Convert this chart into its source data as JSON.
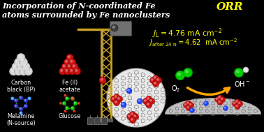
{
  "bg_color": "#000000",
  "title_line1": "Incorporation of N-coordinated Fe",
  "title_line2": "atoms surrounded by Fe nanoclusters",
  "orr_label": "ORR",
  "jl_text": "$\\mathit{J}_{\\rm L} = 4.76\\ \\rm{mA\\ cm}^{-2}$",
  "j24_text": "$\\mathit{J}_{\\rm after\\ 24\\ h} = 4.62\\ \\ \\rm{mA\\ cm}^{-2}$",
  "label_carbon": "Carbon\nblack (BP)",
  "label_fe": "Fe (II)\nacetate",
  "label_melamine": "Melamine\n(N-source)",
  "label_glucose": "Glucose",
  "o2_label": "O$_2$",
  "oh_label": "OH$^-$",
  "title_color": "#ffffff",
  "orr_color": "#ffff00",
  "jl_color": "#ffff00",
  "label_color": "#ffffff",
  "carbon_sphere_color": "#d8d8d8",
  "fe_sphere_color": "#cc1111",
  "melamine_color": "#3333cc",
  "crane_color": "#c8a020",
  "arrow_color": "#ffa500",
  "o2_color": "#00cc00",
  "oh_green": "#00cc00",
  "oh_white": "#e0e0e0",
  "graphene_color": "#888888",
  "graphene_fill": "#b8b8b8",
  "n_atom_color": "#2244ff",
  "dome_fill": "#c0c0c0"
}
